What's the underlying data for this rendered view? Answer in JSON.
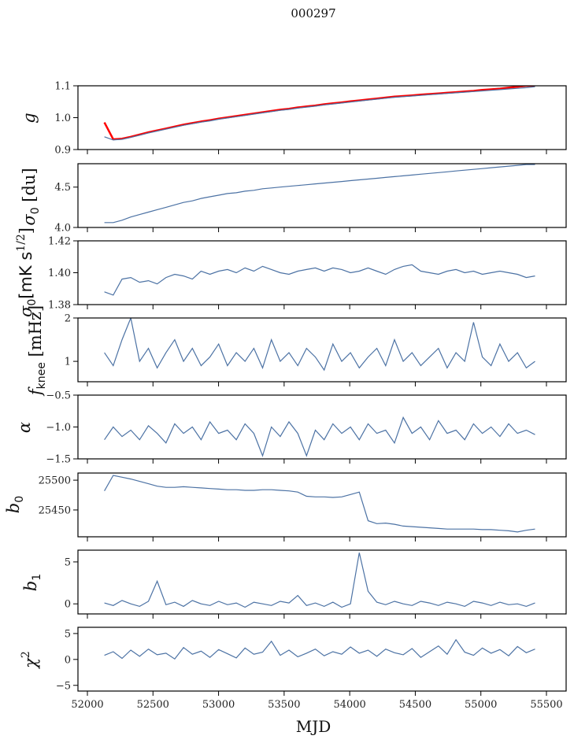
{
  "chart_data": {
    "type": "line",
    "title": "000297",
    "xlabel": "MJD",
    "xlim": [
      51928,
      55650
    ],
    "xticks": [
      52000,
      52500,
      53000,
      53500,
      54000,
      54500,
      55000,
      55500
    ],
    "xtick_labels": [
      "52000",
      "52500",
      "53000",
      "53500",
      "54000",
      "54500",
      "55000",
      "55500"
    ],
    "line_color": "#4c72a4",
    "highlight_color": "#ff0000",
    "x": [
      52130,
      52197,
      52264,
      52331,
      52398,
      52465,
      52532,
      52599,
      52666,
      52733,
      52800,
      52867,
      52934,
      53001,
      53068,
      53135,
      53202,
      53269,
      53336,
      53403,
      53470,
      53537,
      53604,
      53671,
      53738,
      53805,
      53872,
      53939,
      54006,
      54073,
      54140,
      54207,
      54274,
      54341,
      54408,
      54475,
      54542,
      54609,
      54676,
      54743,
      54810,
      54877,
      54944,
      55011,
      55078,
      55145,
      55212,
      55279,
      55346,
      55413
    ],
    "panels": [
      {
        "ylabel": {
          "main": "g",
          "sub": "",
          "sup": "",
          "tail": ""
        },
        "ylim": [
          0.9,
          1.1
        ],
        "yticks": [
          0.9,
          1.0,
          1.1
        ],
        "ytick_labels": [
          "0.9",
          "1.0",
          "1.1"
        ],
        "series": [
          {
            "name": "g",
            "color": "#4c72a4",
            "values": [
              0.94,
              0.93,
              0.932,
              0.938,
              0.945,
              0.952,
              0.958,
              0.964,
              0.97,
              0.976,
              0.981,
              0.986,
              0.99,
              0.995,
              0.999,
              1.003,
              1.007,
              1.011,
              1.015,
              1.019,
              1.023,
              1.026,
              1.03,
              1.033,
              1.036,
              1.04,
              1.043,
              1.046,
              1.049,
              1.052,
              1.055,
              1.058,
              1.061,
              1.064,
              1.066,
              1.068,
              1.07,
              1.072,
              1.074,
              1.076,
              1.078,
              1.08,
              1.082,
              1.084,
              1.086,
              1.088,
              1.09,
              1.092,
              1.094,
              1.097
            ]
          },
          {
            "name": "g-flagged",
            "color": "#ff0000",
            "values": [
              0.985,
              0.932,
              0.934,
              0.94,
              0.947,
              0.954,
              0.96,
              0.966,
              0.972,
              0.978,
              0.983,
              0.988,
              0.992,
              0.997,
              1.001,
              1.005,
              1.009,
              1.013,
              1.017,
              1.021,
              1.025,
              1.028,
              1.032,
              1.035,
              1.038,
              1.042,
              1.045,
              1.048,
              1.051,
              1.054,
              1.057,
              1.06,
              1.063,
              1.066,
              1.068,
              1.07,
              1.072,
              1.074,
              1.076,
              1.078,
              1.08,
              1.082,
              1.084,
              1.087,
              1.089,
              1.091,
              1.094,
              1.097,
              1.1,
              1.1
            ]
          }
        ]
      },
      {
        "ylabel": {
          "main": "σ",
          "sub": "0",
          "sup": "",
          "tail": " [du]"
        },
        "ylim": [
          4.0,
          4.79
        ],
        "yticks": [
          4.0,
          4.5
        ],
        "ytick_labels": [
          "4.0",
          "4.5"
        ],
        "series": [
          {
            "name": "sigma0_du",
            "color": "#4c72a4",
            "values": [
              4.06,
              4.06,
              4.09,
              4.13,
              4.16,
              4.19,
              4.22,
              4.25,
              4.28,
              4.31,
              4.33,
              4.36,
              4.38,
              4.4,
              4.42,
              4.43,
              4.45,
              4.46,
              4.48,
              4.49,
              4.5,
              4.51,
              4.52,
              4.53,
              4.54,
              4.55,
              4.56,
              4.57,
              4.58,
              4.59,
              4.6,
              4.61,
              4.62,
              4.63,
              4.64,
              4.65,
              4.66,
              4.67,
              4.68,
              4.69,
              4.7,
              4.71,
              4.72,
              4.73,
              4.74,
              4.75,
              4.76,
              4.77,
              4.78,
              4.78
            ]
          }
        ]
      },
      {
        "ylabel": {
          "main": "σ",
          "sub": "0",
          "sup": "1/2",
          "tail": "[mK s",
          "close": "]"
        },
        "ylim": [
          1.38,
          1.42
        ],
        "yticks": [
          1.38,
          1.4,
          1.42
        ],
        "ytick_labels": [
          "1.38",
          "1.40",
          "1.42"
        ],
        "series": [
          {
            "name": "sigma0_mK",
            "color": "#4c72a4",
            "values": [
              1.388,
              1.386,
              1.396,
              1.397,
              1.394,
              1.395,
              1.393,
              1.397,
              1.399,
              1.398,
              1.396,
              1.401,
              1.399,
              1.401,
              1.402,
              1.4,
              1.403,
              1.401,
              1.404,
              1.402,
              1.4,
              1.399,
              1.401,
              1.402,
              1.403,
              1.401,
              1.403,
              1.402,
              1.4,
              1.401,
              1.403,
              1.401,
              1.399,
              1.402,
              1.404,
              1.405,
              1.401,
              1.4,
              1.399,
              1.401,
              1.402,
              1.4,
              1.401,
              1.399,
              1.4,
              1.401,
              1.4,
              1.399,
              1.397,
              1.398
            ]
          }
        ]
      },
      {
        "ylabel": {
          "main": "f",
          "sub": "knee",
          "sup": "",
          "tail": " [mHz]"
        },
        "ylim": [
          0.53,
          2.0
        ],
        "yticks": [
          1,
          2
        ],
        "ytick_labels": [
          "1",
          "2"
        ],
        "series": [
          {
            "name": "fknee",
            "color": "#4c72a4",
            "values": [
              1.2,
              0.9,
              1.5,
              2.0,
              1.0,
              1.3,
              0.85,
              1.2,
              1.5,
              1.0,
              1.3,
              0.9,
              1.1,
              1.4,
              0.9,
              1.2,
              1.0,
              1.3,
              0.85,
              1.5,
              1.0,
              1.2,
              0.9,
              1.3,
              1.1,
              0.8,
              1.4,
              1.0,
              1.2,
              0.85,
              1.1,
              1.3,
              0.9,
              1.5,
              1.0,
              1.2,
              0.9,
              1.1,
              1.3,
              0.85,
              1.2,
              1.0,
              1.9,
              1.1,
              0.9,
              1.4,
              1.0,
              1.2,
              0.85,
              1.0
            ]
          }
        ]
      },
      {
        "ylabel": {
          "main": "α",
          "sub": "",
          "sup": "",
          "tail": ""
        },
        "ylim": [
          -1.5,
          -0.5
        ],
        "yticks": [
          -1.5,
          -1.0,
          -0.5
        ],
        "ytick_labels": [
          "−1.5",
          "−1.0",
          "−0.5"
        ],
        "series": [
          {
            "name": "alpha",
            "color": "#4c72a4",
            "values": [
              -1.2,
              -1.0,
              -1.15,
              -1.05,
              -1.2,
              -0.98,
              -1.1,
              -1.25,
              -0.95,
              -1.1,
              -1.0,
              -1.2,
              -0.92,
              -1.1,
              -1.05,
              -1.2,
              -0.95,
              -1.1,
              -1.45,
              -1.0,
              -1.15,
              -0.92,
              -1.1,
              -1.45,
              -1.05,
              -1.2,
              -0.95,
              -1.1,
              -1.0,
              -1.2,
              -0.95,
              -1.1,
              -1.05,
              -1.25,
              -0.85,
              -1.1,
              -1.0,
              -1.2,
              -0.9,
              -1.1,
              -1.05,
              -1.2,
              -0.95,
              -1.1,
              -1.0,
              -1.15,
              -0.95,
              -1.1,
              -1.05,
              -1.12
            ]
          }
        ]
      },
      {
        "ylabel": {
          "main": "b",
          "sub": "0",
          "sup": "",
          "tail": ""
        },
        "ylim": [
          25405,
          25512
        ],
        "yticks": [
          25450,
          25500
        ],
        "ytick_labels": [
          "25450",
          "25500"
        ],
        "series": [
          {
            "name": "b0",
            "color": "#4c72a4",
            "values": [
              25482,
              25508,
              25505,
              25502,
              25498,
              25494,
              25490,
              25488,
              25488,
              25489,
              25488,
              25487,
              25486,
              25485,
              25484,
              25484,
              25483,
              25483,
              25484,
              25484,
              25483,
              25482,
              25480,
              25473,
              25472,
              25472,
              25471,
              25472,
              25476,
              25480,
              25432,
              25427,
              25428,
              25426,
              25423,
              25422,
              25421,
              25420,
              25419,
              25418,
              25418,
              25418,
              25418,
              25417,
              25417,
              25416,
              25415,
              25413,
              25416,
              25418
            ]
          }
        ]
      },
      {
        "ylabel": {
          "main": "b",
          "sub": "1",
          "sup": "",
          "tail": ""
        },
        "ylim": [
          -1.2,
          6.4
        ],
        "yticks": [
          0,
          5
        ],
        "ytick_labels": [
          "0",
          "5"
        ],
        "series": [
          {
            "name": "b1",
            "color": "#4c72a4",
            "values": [
              0.1,
              -0.2,
              0.4,
              0.0,
              -0.3,
              0.3,
              2.7,
              -0.1,
              0.2,
              -0.3,
              0.4,
              0.0,
              -0.2,
              0.3,
              -0.1,
              0.1,
              -0.4,
              0.2,
              0.0,
              -0.2,
              0.3,
              0.1,
              1.0,
              -0.2,
              0.1,
              -0.3,
              0.2,
              -0.4,
              0.0,
              6.1,
              1.5,
              0.2,
              -0.1,
              0.3,
              0.0,
              -0.2,
              0.3,
              0.1,
              -0.2,
              0.2,
              0.0,
              -0.3,
              0.3,
              0.1,
              -0.2,
              0.2,
              -0.1,
              0.0,
              -0.3,
              0.1
            ]
          }
        ]
      },
      {
        "ylabel": {
          "main": "χ",
          "sub": "",
          "sup": "2",
          "tail": ""
        },
        "ylim": [
          -6.1,
          6.2
        ],
        "yticks": [
          -5,
          0,
          5
        ],
        "ytick_labels": [
          "−5",
          "0",
          "5"
        ],
        "series": [
          {
            "name": "chi2",
            "color": "#4c72a4",
            "values": [
              0.8,
              1.5,
              0.2,
              1.8,
              0.6,
              2.0,
              0.9,
              1.2,
              0.1,
              2.3,
              1.0,
              1.6,
              0.4,
              1.9,
              1.1,
              0.3,
              2.2,
              1.0,
              1.4,
              3.5,
              0.8,
              1.8,
              0.5,
              1.2,
              2.0,
              0.7,
              1.5,
              1.0,
              2.4,
              1.2,
              1.8,
              0.6,
              2.0,
              1.3,
              0.9,
              2.1,
              0.4,
              1.5,
              2.6,
              1.0,
              3.8,
              1.4,
              0.8,
              2.2,
              1.2,
              1.9,
              0.7,
              2.5,
              1.3,
              2.0
            ]
          }
        ]
      }
    ]
  }
}
